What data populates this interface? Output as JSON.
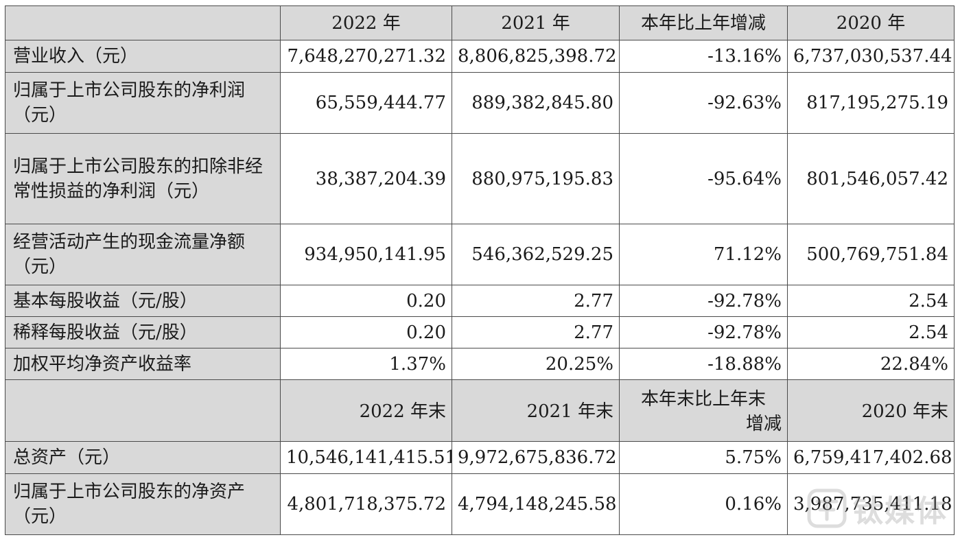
{
  "header_top": {
    "corner": "",
    "col1": "2022 年",
    "col2": "2021 年",
    "col3": "本年比上年增减",
    "col4": "2020 年"
  },
  "rows_top": [
    {
      "label": "营业收入（元）",
      "y2022": "7,648,270,271.32",
      "y2021": "8,806,825,398.72",
      "change": "-13.16%",
      "y2020": "6,737,030,537.44"
    },
    {
      "label": "归属于上市公司股东的净利润（元）",
      "y2022": "65,559,444.77",
      "y2021": "889,382,845.80",
      "change": "-92.63%",
      "y2020": "817,195,275.19"
    },
    {
      "label": "归属于上市公司股东的扣除非经常性损益的净利润（元）",
      "y2022": "38,387,204.39",
      "y2021": "880,975,195.83",
      "change": "-95.64%",
      "y2020": "801,546,057.42"
    },
    {
      "label": "经营活动产生的现金流量净额（元）",
      "y2022": "934,950,141.95",
      "y2021": "546,362,529.25",
      "change": "71.12%",
      "y2020": "500,769,751.84"
    },
    {
      "label": "基本每股收益（元/股）",
      "y2022": "0.20",
      "y2021": "2.77",
      "change": "-92.78%",
      "y2020": "2.54"
    },
    {
      "label": "稀释每股收益（元/股）",
      "y2022": "0.20",
      "y2021": "2.77",
      "change": "-92.78%",
      "y2020": "2.54"
    },
    {
      "label": "加权平均净资产收益率",
      "y2022": "1.37%",
      "y2021": "20.25%",
      "change": "-18.88%",
      "y2020": "22.84%"
    }
  ],
  "header_bottom": {
    "corner": "",
    "col1": "2022 年末",
    "col2": "2021 年末",
    "col3_line1": "本年末比上年末",
    "col3_line2": "增减",
    "col4": "2020 年末"
  },
  "rows_bottom": [
    {
      "label": "总资产（元）",
      "y2022": "10,546,141,415.51",
      "y2021": "9,972,675,836.72",
      "change": "5.75%",
      "y2020": "6,759,417,402.68"
    },
    {
      "label": "归属于上市公司股东的净资产（元）",
      "y2022": "4,801,718,375.72",
      "y2021": "4,794,148,245.58",
      "change": "0.16%",
      "y2020": "3,987,735,411.18"
    }
  ],
  "watermark": {
    "text": "钛媒体",
    "icon": "tmtpost-logo-icon"
  }
}
